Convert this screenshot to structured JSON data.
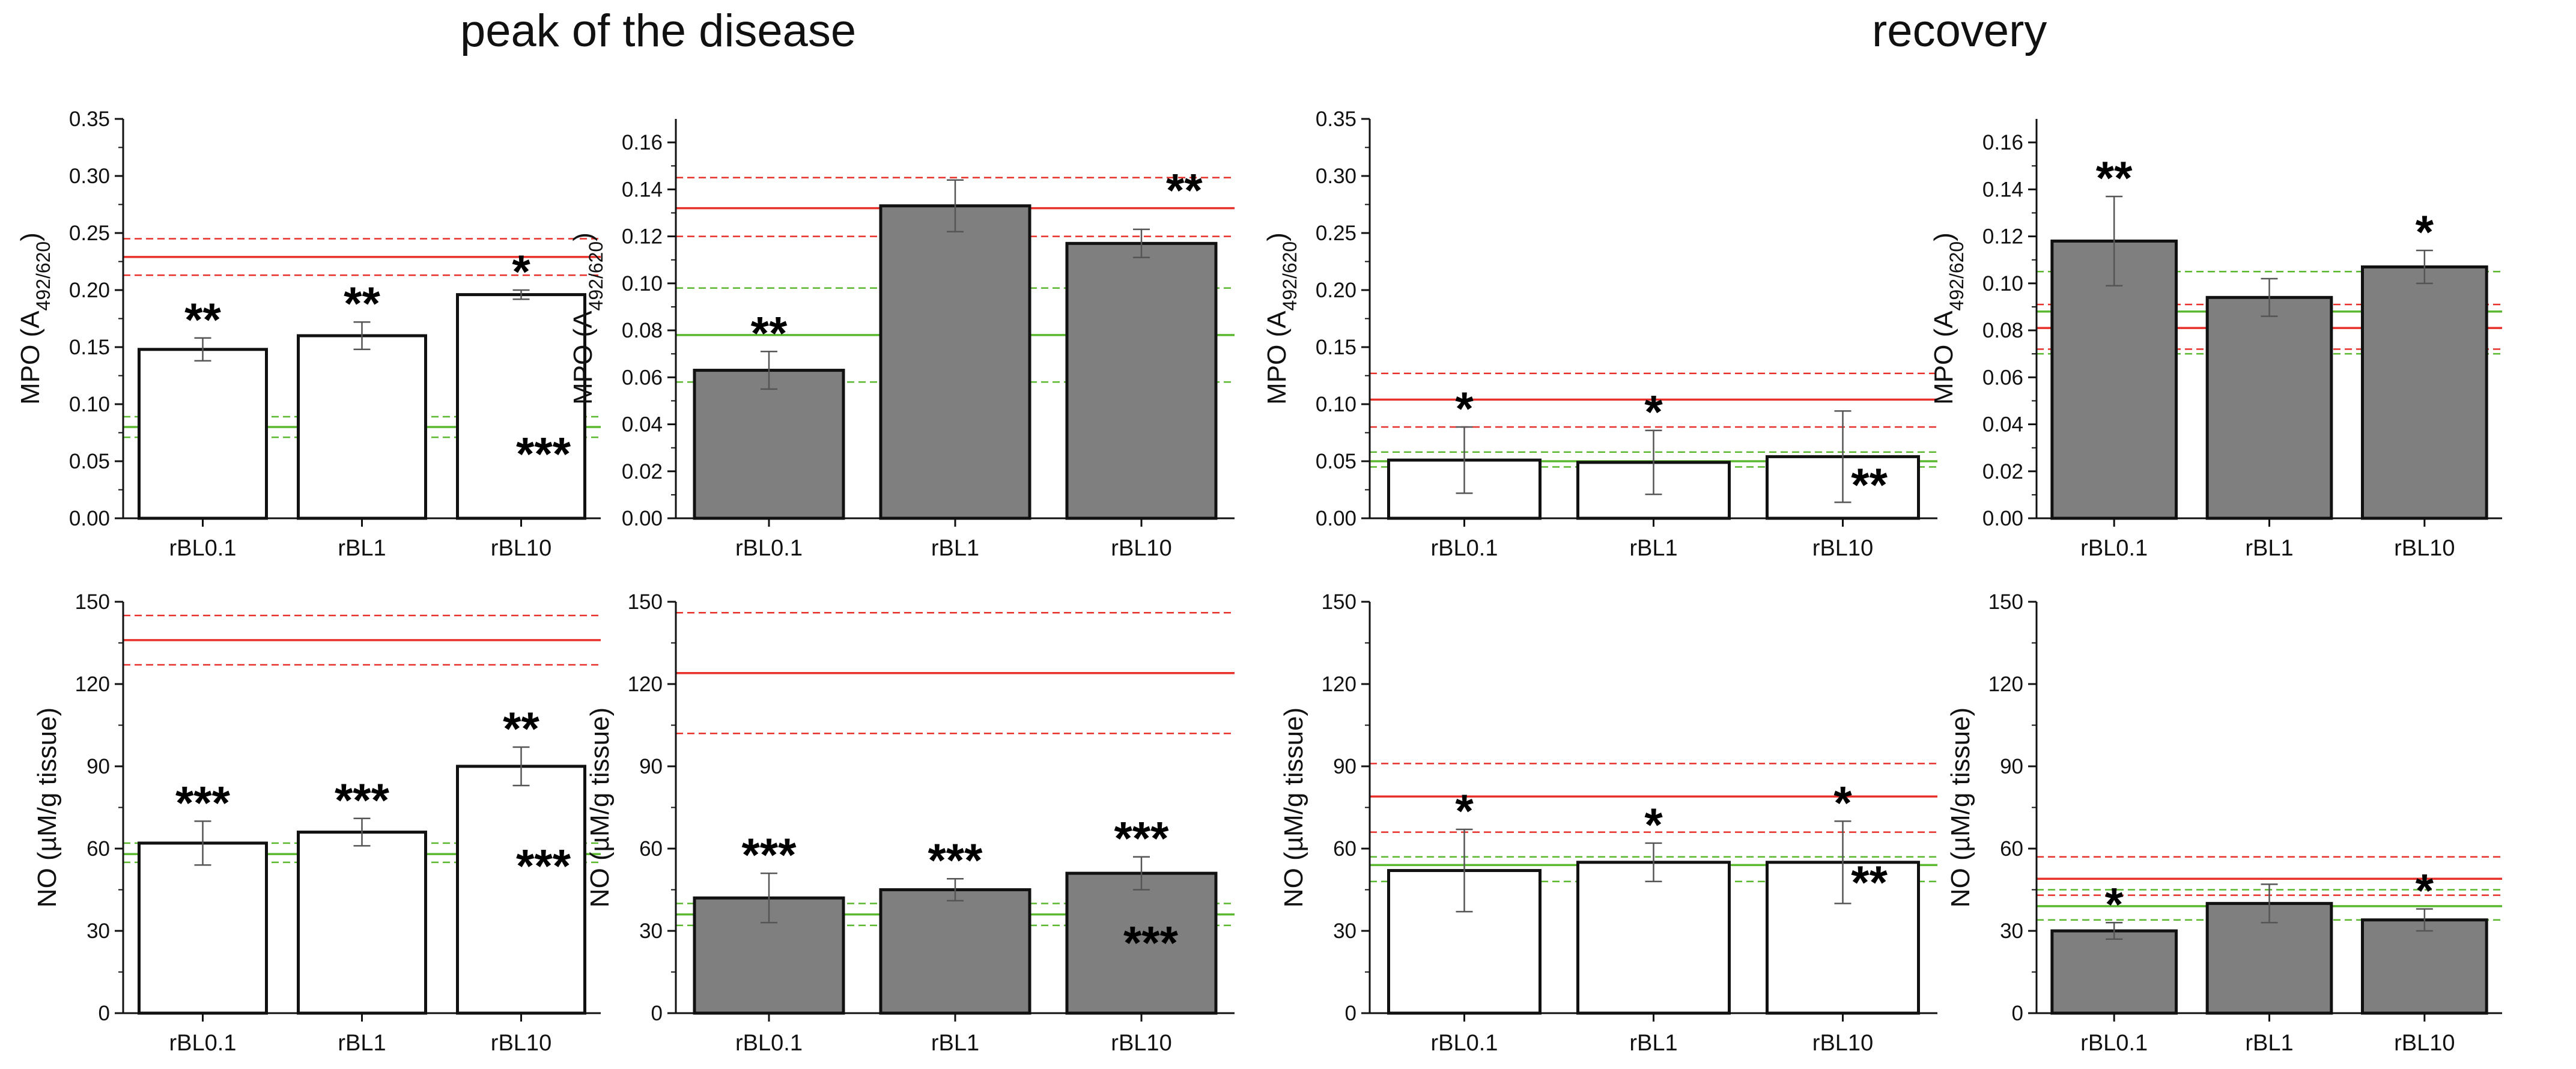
{
  "titles": {
    "peak": "peak of the disease",
    "recovery": "recovery"
  },
  "colors": {
    "white_bar": "#ffffff",
    "gray_bar": "#7f7f7f",
    "red_line": "#e8302a",
    "green_line": "#5ab82f",
    "bar_stroke": "#111111"
  },
  "chart_data": [
    {
      "id": "peak-mpo-white",
      "section": "peak of the disease",
      "type": "bar",
      "ylabel": "MPO (A492/620)",
      "ylabel_main": "MPO (A",
      "ylabel_sub": "492/620",
      "ylabel_end": ")",
      "ylim": [
        0,
        0.35
      ],
      "yticks": [
        "0.00",
        "0.05",
        "0.10",
        "0.15",
        "0.20",
        "0.25",
        "0.30",
        "0.35"
      ],
      "categories": [
        "rBL0.1",
        "rBL1",
        "rBL10"
      ],
      "bar_fill": "white",
      "values": [
        0.148,
        0.16,
        0.196
      ],
      "errors": [
        0.01,
        0.012,
        0.004
      ],
      "stars": [
        "**",
        "**",
        "*"
      ],
      "ref_lines": {
        "red": [
          0.229,
          0.213,
          0.245
        ],
        "green": [
          0.08,
          0.071,
          0.089
        ]
      },
      "annotation": "***"
    },
    {
      "id": "peak-mpo-gray",
      "section": "peak of the disease",
      "type": "bar",
      "ylabel": "MPO (A492/620)",
      "ylabel_main": "MPO (A",
      "ylabel_sub": "492/620",
      "ylabel_end": ")",
      "ylim": [
        0,
        0.17
      ],
      "yticks": [
        "0.00",
        "0.02",
        "0.04",
        "0.06",
        "0.08",
        "0.10",
        "0.12",
        "0.14",
        "0.16"
      ],
      "categories": [
        "rBL0.1",
        "rBL1",
        "rBL10"
      ],
      "bar_fill": "gray",
      "values": [
        0.063,
        0.133,
        0.117
      ],
      "errors": [
        0.008,
        0.011,
        0.006
      ],
      "stars": [
        "**",
        "",
        ""
      ],
      "ref_lines": {
        "red": [
          0.132,
          0.12,
          0.145
        ],
        "green": [
          0.078,
          0.058,
          0.098
        ]
      },
      "annotation": "**"
    },
    {
      "id": "rec-mpo-white",
      "section": "recovery",
      "type": "bar",
      "ylabel": "MPO (A492/620)",
      "ylabel_main": "MPO (A",
      "ylabel_sub": "492/620",
      "ylabel_end": ")",
      "ylim": [
        0,
        0.35
      ],
      "yticks": [
        "0.00",
        "0.05",
        "0.10",
        "0.15",
        "0.20",
        "0.25",
        "0.30",
        "0.35"
      ],
      "categories": [
        "rBL0.1",
        "rBL1",
        "rBL10"
      ],
      "bar_fill": "white",
      "values": [
        0.051,
        0.049,
        0.054
      ],
      "errors": [
        0.029,
        0.028,
        0.04
      ],
      "stars": [
        "*",
        "*",
        ""
      ],
      "ref_lines": {
        "red": [
          0.104,
          0.08,
          0.127
        ],
        "green": [
          0.05,
          0.045,
          0.058
        ]
      },
      "annotation": "**"
    },
    {
      "id": "rec-mpo-gray",
      "section": "recovery",
      "type": "bar",
      "ylabel": "MPO (A492/620)",
      "ylabel_main": "MPO (A",
      "ylabel_sub": "492/620",
      "ylabel_end": ")",
      "ylim": [
        0,
        0.17
      ],
      "yticks": [
        "0.00",
        "0.02",
        "0.04",
        "0.06",
        "0.08",
        "0.10",
        "0.12",
        "0.14",
        "0.16"
      ],
      "categories": [
        "rBL0.1",
        "rBL1",
        "rBL10"
      ],
      "bar_fill": "gray",
      "values": [
        0.118,
        0.094,
        0.107
      ],
      "errors": [
        0.019,
        0.008,
        0.007
      ],
      "stars": [
        "**",
        "",
        "*"
      ],
      "ref_lines": {
        "red": [
          0.081,
          0.072,
          0.091
        ],
        "green": [
          0.088,
          0.07,
          0.105
        ]
      },
      "annotation": ""
    },
    {
      "id": "peak-no-white",
      "section": "peak of the disease",
      "type": "bar",
      "ylabel": "NO (µM/g tissue)",
      "ylabel_main": "NO (µM/g tissue)",
      "ylabel_sub": "",
      "ylabel_end": "",
      "ylim": [
        0,
        150
      ],
      "yticks": [
        "0",
        "30",
        "60",
        "90",
        "120",
        "150"
      ],
      "categories": [
        "rBL0.1",
        "rBL1",
        "rBL10"
      ],
      "bar_fill": "white",
      "values": [
        62,
        66,
        90
      ],
      "errors": [
        8,
        5,
        7
      ],
      "stars": [
        "***",
        "***",
        "**"
      ],
      "ref_lines": {
        "red": [
          136,
          127,
          145
        ],
        "green": [
          58,
          55,
          62
        ]
      },
      "annotation": "***"
    },
    {
      "id": "peak-no-gray",
      "section": "peak of the disease",
      "type": "bar",
      "ylabel": "NO (µM/g tissue)",
      "ylabel_main": "NO (µM/g tissue)",
      "ylabel_sub": "",
      "ylabel_end": "",
      "ylim": [
        0,
        150
      ],
      "yticks": [
        "0",
        "30",
        "60",
        "90",
        "120",
        "150"
      ],
      "categories": [
        "rBL0.1",
        "rBL1",
        "rBL10"
      ],
      "bar_fill": "gray",
      "values": [
        42,
        45,
        51
      ],
      "errors": [
        9,
        4,
        6
      ],
      "stars": [
        "***",
        "***",
        "***"
      ],
      "ref_lines": {
        "red": [
          124,
          102,
          146
        ],
        "green": [
          36,
          32,
          40
        ]
      },
      "annotation": "***"
    },
    {
      "id": "rec-no-white",
      "section": "recovery",
      "type": "bar",
      "ylabel": "NO (µM/g tissue)",
      "ylabel_main": "NO (µM/g tissue)",
      "ylabel_sub": "",
      "ylabel_end": "",
      "ylim": [
        0,
        150
      ],
      "yticks": [
        "0",
        "30",
        "60",
        "90",
        "120",
        "150"
      ],
      "categories": [
        "rBL0.1",
        "rBL1",
        "rBL10"
      ],
      "bar_fill": "white",
      "values": [
        52,
        55,
        55
      ],
      "errors": [
        15,
        7,
        15
      ],
      "stars": [
        "*",
        "*",
        "*"
      ],
      "ref_lines": {
        "red": [
          79,
          66,
          91
        ],
        "green": [
          54,
          48,
          57
        ]
      },
      "annotation": "**"
    },
    {
      "id": "rec-no-gray",
      "section": "recovery",
      "type": "bar",
      "ylabel": "NO (µM/g tissue)",
      "ylabel_main": "NO (µM/g tissue)",
      "ylabel_sub": "",
      "ylabel_end": "",
      "ylim": [
        0,
        150
      ],
      "yticks": [
        "0",
        "30",
        "60",
        "90",
        "120",
        "150"
      ],
      "categories": [
        "rBL0.1",
        "rBL1",
        "rBL10"
      ],
      "bar_fill": "gray",
      "values": [
        30,
        40,
        34
      ],
      "errors": [
        3,
        7,
        4
      ],
      "stars": [
        "*",
        "",
        "*"
      ],
      "ref_lines": {
        "red": [
          49,
          43,
          57
        ],
        "green": [
          39,
          34,
          45
        ]
      },
      "annotation": ""
    }
  ]
}
